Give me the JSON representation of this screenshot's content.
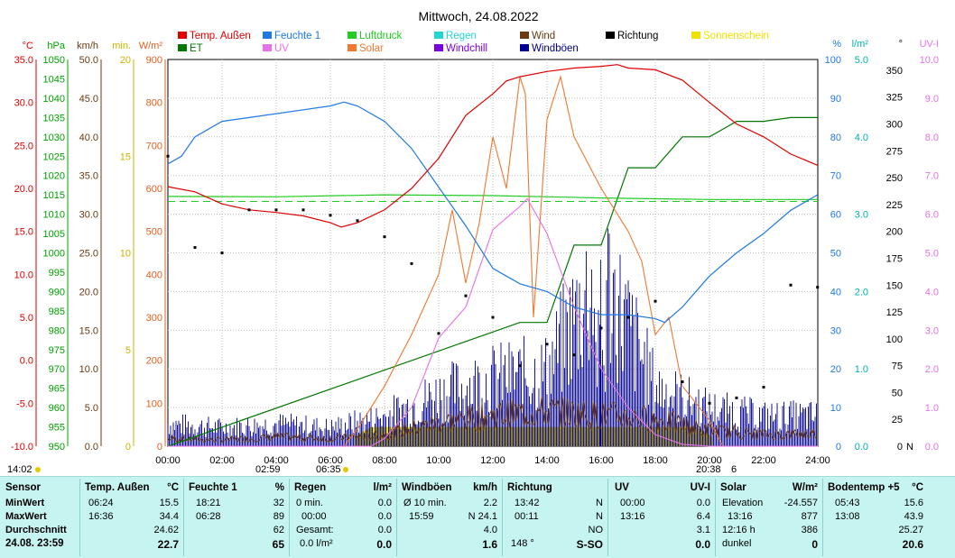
{
  "title": "Mittwoch, 24.08.2022",
  "legend": [
    {
      "label": "Temp. Außen",
      "color": "#e00000"
    },
    {
      "label": "Feuchte 1",
      "color": "#1e78e6"
    },
    {
      "label": "Luftdruck",
      "color": "#22cc22"
    },
    {
      "label": "Regen",
      "color": "#22d6d6"
    },
    {
      "label": "Wind",
      "color": "#6a3a10"
    },
    {
      "label": "Richtung",
      "color": "#000000"
    },
    {
      "label": "Sonnenschein",
      "color": "#f0e000"
    },
    {
      "label": "ET",
      "color": "#007700"
    },
    {
      "label": "UV",
      "color": "#e870e8"
    },
    {
      "label": "Solar",
      "color": "#f07830"
    },
    {
      "label": "Windchill",
      "color": "#7a00e0"
    },
    {
      "label": "Windböen",
      "color": "#000090"
    }
  ],
  "left_axes": [
    {
      "unit": "°C",
      "color": "#e00000",
      "ticks": [
        "35.0",
        "30.0",
        "25.0",
        "20.0",
        "15.0",
        "10.0",
        "5.0",
        "0.0",
        "-5.0",
        "-10.0"
      ]
    },
    {
      "unit": "hPa",
      "color": "#00a000",
      "ticks": [
        "1050",
        "1045",
        "1040",
        "1035",
        "1030",
        "1025",
        "1020",
        "1015",
        "1010",
        "1005",
        "1000",
        "995",
        "990",
        "985",
        "980",
        "975",
        "970",
        "965",
        "960",
        "955",
        "950"
      ]
    },
    {
      "unit": "km/h",
      "color": "#6a3a10",
      "ticks": [
        "50.0",
        "45.0",
        "40.0",
        "35.0",
        "30.0",
        "25.0",
        "20.0",
        "15.0",
        "10.0",
        "5.0",
        "0.0"
      ]
    },
    {
      "unit": "min.",
      "color": "#c8b400",
      "ticks": [
        "20",
        "15",
        "10",
        "5",
        "0"
      ]
    },
    {
      "unit": "W/m²",
      "color": "#e06020",
      "ticks": [
        "900",
        "800",
        "700",
        "600",
        "500",
        "400",
        "300",
        "200",
        "100",
        "0"
      ]
    }
  ],
  "right_axes": [
    {
      "unit": "%",
      "color": "#1e78e6",
      "ticks": [
        "100",
        "90",
        "80",
        "70",
        "60",
        "50",
        "40",
        "30",
        "20",
        "10",
        "0"
      ]
    },
    {
      "unit": "l/m²",
      "color": "#00b0b0",
      "ticks": [
        "5.0",
        "4.0",
        "3.0",
        "2.0",
        "1.0",
        "0.0"
      ]
    },
    {
      "unit": "°",
      "color": "#000000",
      "ticks": [
        "350",
        "325",
        "300",
        "275",
        "250",
        "225",
        "200",
        "175",
        "150",
        "125",
        "100",
        "75",
        "50",
        "25",
        "0"
      ],
      "zero_label": "N"
    },
    {
      "unit": "UV-I",
      "color": "#e870e8",
      "ticks": [
        "10.0",
        "9.0",
        "8.0",
        "7.0",
        "6.0",
        "5.0",
        "4.0",
        "3.0",
        "2.0",
        "1.0",
        "0.0"
      ]
    }
  ],
  "bottom_marks": {
    "sunrise": "06:35",
    "sunset": "20:38",
    "left_time": "14:02",
    "moon1": "02:59",
    "moon2": "6"
  },
  "chart_data": {
    "type": "line",
    "title": "Mittwoch, 24.08.2022",
    "x_ticks": [
      "00:00",
      "02:00",
      "04:00",
      "06:00",
      "08:00",
      "10:00",
      "12:00",
      "14:00",
      "16:00",
      "18:00",
      "20:00",
      "22:00",
      "24:00"
    ],
    "xlim": [
      0,
      24
    ],
    "grid": true,
    "legend_placement": "top",
    "series": [
      {
        "name": "Temp. Außen",
        "axis": "°C",
        "ylim": [
          -10,
          35
        ],
        "x": [
          0,
          1,
          2,
          3,
          4,
          5,
          6,
          6.4,
          7,
          8,
          9,
          10,
          11,
          12,
          12.5,
          13,
          14,
          15,
          16,
          16.6,
          17,
          18,
          19,
          20,
          21,
          22,
          22.5,
          23,
          23.99
        ],
        "values": [
          20.2,
          19.6,
          18.2,
          17.5,
          17.2,
          16.8,
          16.0,
          15.5,
          16.0,
          17.5,
          20.0,
          23.5,
          28.5,
          31.0,
          32.5,
          33.0,
          33.6,
          34.0,
          34.2,
          34.4,
          34.0,
          33.8,
          32.6,
          30.0,
          27.5,
          26.0,
          25.0,
          24.0,
          22.7
        ]
      },
      {
        "name": "Feuchte 1",
        "axis": "%",
        "ylim": [
          0,
          100
        ],
        "x": [
          0,
          0.5,
          1,
          2,
          3,
          4,
          5,
          6,
          6.5,
          7,
          8,
          9,
          10,
          11,
          12,
          13,
          14,
          15,
          16,
          17,
          18,
          18.35,
          19,
          20,
          21,
          22,
          23,
          23.99
        ],
        "values": [
          73,
          75,
          80,
          84,
          85,
          86,
          87,
          88,
          89,
          88,
          84,
          77,
          67,
          57,
          46,
          42,
          40,
          36,
          34,
          34,
          33,
          32,
          36,
          44,
          50,
          55,
          61,
          65
        ]
      },
      {
        "name": "Luftdruck",
        "axis": "hPa",
        "ylim": [
          950,
          1050
        ],
        "x": [
          0,
          4,
          8,
          12,
          16,
          20,
          24
        ],
        "values": [
          1014.6,
          1014.5,
          1015.0,
          1014.8,
          1014.2,
          1013.8,
          1013.8
        ]
      },
      {
        "name": "ET",
        "axis": "l/m²",
        "ylim": [
          0,
          5
        ],
        "x": [
          0,
          13,
          14,
          15,
          16,
          17,
          18,
          19,
          20,
          21,
          22,
          23,
          24
        ],
        "values": [
          0,
          1.6,
          1.6,
          2.6,
          2.6,
          3.6,
          3.6,
          4.0,
          4.0,
          4.2,
          4.2,
          4.25,
          4.25
        ]
      },
      {
        "name": "Solar",
        "axis": "W/m²",
        "ylim": [
          0,
          900
        ],
        "x": [
          0,
          6.5,
          7,
          8,
          9,
          10,
          10.5,
          11,
          11.5,
          12,
          12.5,
          13,
          13.2,
          13.5,
          14,
          14.5,
          15,
          16,
          17,
          17.5,
          18,
          18.5,
          19,
          19.5,
          20,
          20.5,
          24
        ],
        "values": [
          0,
          0,
          40,
          140,
          260,
          400,
          550,
          380,
          520,
          720,
          600,
          860,
          820,
          300,
          760,
          860,
          720,
          600,
          500,
          430,
          260,
          300,
          140,
          100,
          60,
          0,
          0
        ]
      },
      {
        "name": "UV",
        "axis": "UV-I",
        "ylim": [
          0,
          10
        ],
        "x": [
          0,
          7.5,
          8,
          9,
          10,
          11,
          12,
          13,
          13.27,
          14,
          15,
          16,
          17,
          18,
          19,
          20,
          24
        ],
        "values": [
          0,
          0,
          0.2,
          1.0,
          2.8,
          3.6,
          5.6,
          6.2,
          6.4,
          5.5,
          3.6,
          2.0,
          1.0,
          0.3,
          0.05,
          0,
          0
        ]
      },
      {
        "name": "Richtung",
        "axis": "°",
        "ylim": [
          0,
          360
        ],
        "x": [
          0,
          1,
          2,
          3,
          4,
          5,
          6,
          7,
          8,
          9,
          10,
          11,
          12,
          13,
          14,
          15,
          16,
          17,
          18,
          19,
          20,
          21,
          22,
          23,
          23.99
        ],
        "values": [
          270,
          185,
          180,
          220,
          220,
          220,
          215,
          210,
          195,
          170,
          105,
          140,
          120,
          75,
          95,
          85,
          110,
          120,
          135,
          60,
          40,
          45,
          55,
          150,
          148
        ]
      },
      {
        "name": "Wind",
        "axis": "km/h",
        "ylim": [
          0,
          50
        ],
        "x": [
          0,
          2,
          4,
          6,
          8,
          10,
          12,
          14,
          15.98,
          18,
          20,
          22,
          23.99
        ],
        "values": [
          1.0,
          0.8,
          1.2,
          1.0,
          1.5,
          3.0,
          4.0,
          4.5,
          4.0,
          3.5,
          2.0,
          1.5,
          1.6
        ]
      },
      {
        "name": "Windböen",
        "axis": "km/h",
        "ylim": [
          0,
          50
        ],
        "x": [
          0,
          2,
          4,
          6,
          8,
          10,
          12,
          14,
          15.98,
          18,
          20,
          22,
          23.99
        ],
        "values": [
          3.0,
          2.5,
          3.0,
          2.5,
          4.0,
          7.0,
          9.0,
          10.0,
          24.1,
          8.0,
          5.0,
          4.0,
          4.0
        ]
      },
      {
        "name": "Sonnenschein",
        "axis": "min.",
        "ylim": [
          0,
          20
        ],
        "x": [
          6.9,
          7.5,
          9,
          12,
          15,
          18,
          19.5,
          20.1
        ],
        "values": [
          0.5,
          1.0,
          1.0,
          1.0,
          1.0,
          1.0,
          1.0,
          0.5
        ]
      }
    ]
  },
  "table": {
    "row_labels": [
      "Sensor",
      "MinWert",
      "MaxWert",
      "Durchschnitt",
      "24.08. 23:59"
    ],
    "temp": {
      "header": "Temp. Außen",
      "unit": "°C",
      "min_t": "06:24",
      "min_v": "15.5",
      "max_t": "16:36",
      "max_v": "34.4",
      "avg": "24.62",
      "cur": "22.7"
    },
    "feuchte": {
      "header": "Feuchte 1",
      "unit": "%",
      "min_t": "18:21",
      "min_v": "32",
      "max_t": "06:28",
      "max_v": "89",
      "avg": "62",
      "cur": "65"
    },
    "regen": {
      "header": "Regen",
      "unit": "l/m²",
      "min_t": "0 min.",
      "min_v": "0.0",
      "max_t": "00:00",
      "max_v": "0.0",
      "avg_label": "Gesamt:",
      "avg": "0.0",
      "cur_label": "0.0 l/m²",
      "cur": "0.0"
    },
    "wind": {
      "header": "Windböen",
      "unit": "km/h",
      "min_t": "Ø 10 min.",
      "min_v": "2.2",
      "max_t": "15:59",
      "max_v": "N 24.1",
      "avg": "4.0",
      "cur": "1.6"
    },
    "richtung": {
      "header": "Richtung",
      "min_t": "13:42",
      "min_v": "N",
      "max_t": "00:11",
      "max_v": "N",
      "avg": "NO",
      "cur_label": "148 °",
      "cur": "S-SO"
    },
    "uv": {
      "header": "UV",
      "unit": "UV-I",
      "min_t": "00:00",
      "min_v": "0.0",
      "max_t": "13:16",
      "max_v": "6.4",
      "avg": "3.1",
      "cur": "0.0"
    },
    "solar": {
      "header": "Solar",
      "unit": "W/m²",
      "min_t": "Elevation",
      "min_v": "-24.557",
      "max_t": "13:16",
      "max_v": "877",
      "avg_label": "12:16 h",
      "avg": "386",
      "cur_label": "dunkel",
      "cur": "0"
    },
    "boden": {
      "header": "Bodentemp +5",
      "unit": "°C",
      "min_t": "05:43",
      "min_v": "15.6",
      "max_t": "13:08",
      "max_v": "43.9",
      "avg": "25.27",
      "cur": "20.6"
    }
  }
}
